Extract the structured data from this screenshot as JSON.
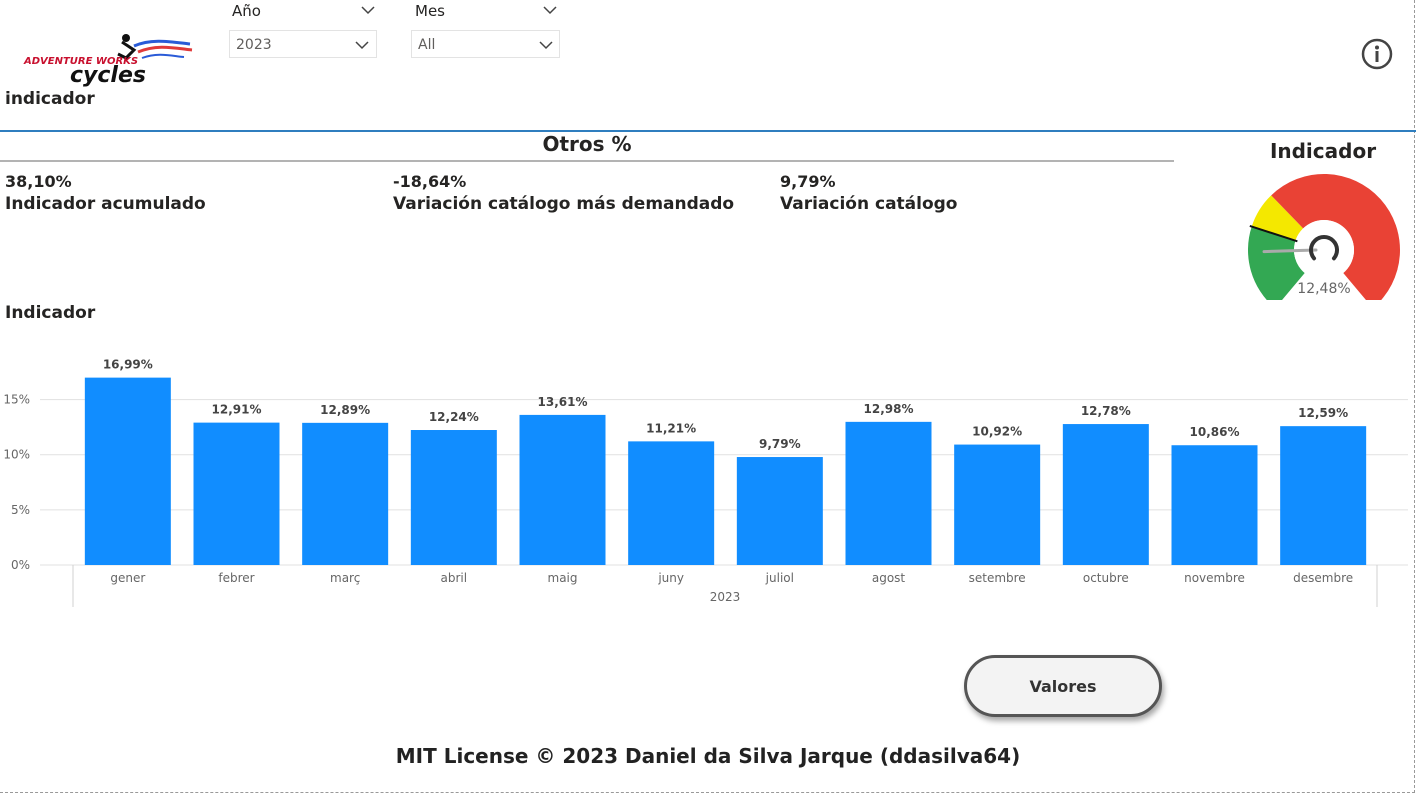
{
  "logo": {
    "line1": "ADVENTURE WORKS",
    "line2": "cycles"
  },
  "filters": {
    "year": {
      "label": "Año",
      "value": "2023"
    },
    "month": {
      "label": "Mes",
      "value": "All"
    }
  },
  "page_title": "indicador",
  "info_icon": "info-icon",
  "section_title": "Otros %",
  "kpis": [
    {
      "value": "38,10%",
      "label": "Indicador acumulado"
    },
    {
      "value": "-18,64%",
      "label": "Variación catálogo más demandado"
    },
    {
      "value": "9,79%",
      "label": "Variación catálogo"
    }
  ],
  "gauge": {
    "title": "Indicador",
    "value_text": "12,48%",
    "value": 12.48,
    "colors": {
      "green": "#33a853",
      "yellow": "#f4e800",
      "red": "#e94235"
    }
  },
  "chart_data": {
    "type": "bar",
    "title": "Indicador",
    "categories": [
      "gener",
      "febrer",
      "març",
      "abril",
      "maig",
      "juny",
      "juliol",
      "agost",
      "setembre",
      "octubre",
      "novembre",
      "desembre"
    ],
    "values": [
      16.99,
      12.91,
      12.89,
      12.24,
      13.61,
      11.21,
      9.79,
      12.98,
      10.92,
      12.78,
      10.86,
      12.59
    ],
    "value_labels": [
      "16,99%",
      "12,91%",
      "12,89%",
      "12,24%",
      "13,61%",
      "11,21%",
      "9,79%",
      "12,98%",
      "10,92%",
      "12,78%",
      "10,86%",
      "12,59%"
    ],
    "y_ticks": [
      0,
      5,
      10,
      15
    ],
    "y_tick_labels": [
      "0%",
      "5%",
      "10%",
      "15%"
    ],
    "ylim": [
      0,
      17.5
    ],
    "x_group_label": "2023",
    "grid": true,
    "bar_color": "#118dff"
  },
  "button": {
    "label": "Valores"
  },
  "footer": "MIT License © 2023 Daniel da Silva Jarque (ddasilva64)"
}
